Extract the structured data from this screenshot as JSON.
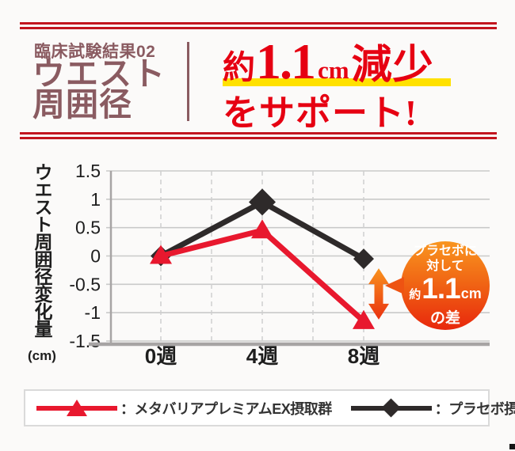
{
  "page": {
    "background": "#fbfaf9",
    "accent_red": "#e60012",
    "rule_red": "#c2151f",
    "header_mauve": "#8a5b61",
    "highlight_yellow": "#ffe100"
  },
  "header": {
    "subtitle": "臨床試験結果02",
    "title_line1": "ウエスト",
    "title_line2": "周囲径"
  },
  "headline": {
    "approx": "約",
    "value": "1.1",
    "unit": "cm",
    "noun": "減少",
    "support": "をサポート!"
  },
  "chart": {
    "y_axis_title": "ウエスト周囲径変化量",
    "y_axis_unit": "(cm)"
  },
  "chart_data": {
    "type": "line",
    "x": [
      0,
      4,
      8
    ],
    "categories": [
      "0週",
      "4週",
      "8週"
    ],
    "series": [
      {
        "name": "メタバリアプレミアムEX摂取群",
        "color": "#e8182e",
        "marker": "triangle",
        "values": [
          0,
          0.45,
          -1.15
        ]
      },
      {
        "name": "プラセボ摂取群",
        "color": "#2e2a2a",
        "marker": "diamond",
        "values": [
          0,
          0.95,
          -0.05
        ]
      }
    ],
    "ylim": [
      -1.5,
      1.5
    ],
    "yticks": [
      1.5,
      1,
      0.5,
      0,
      -0.5,
      -1,
      -1.5
    ],
    "ytick_labels": [
      "1.5",
      "1",
      "0.5",
      "0",
      "-0.5",
      "-1",
      "-1.5"
    ],
    "x_gridline_weeks": [
      0,
      2,
      4,
      6,
      8
    ],
    "xlabel": "",
    "ylabel": "ウエスト周囲径変化量(cm)",
    "grid": true,
    "legend_position": "bottom",
    "annotation": "プラセボに対して約1.1cmの差"
  },
  "badge": {
    "line1": "プラセボに",
    "line2": "対して",
    "approx": "約",
    "value": "1.1",
    "unit": "cm",
    "line4": "の差"
  },
  "legend": {
    "items": [
      {
        "label": "：メタバリアプレミアムEX摂取群"
      },
      {
        "label": "：プラセボ摂取群"
      }
    ]
  }
}
